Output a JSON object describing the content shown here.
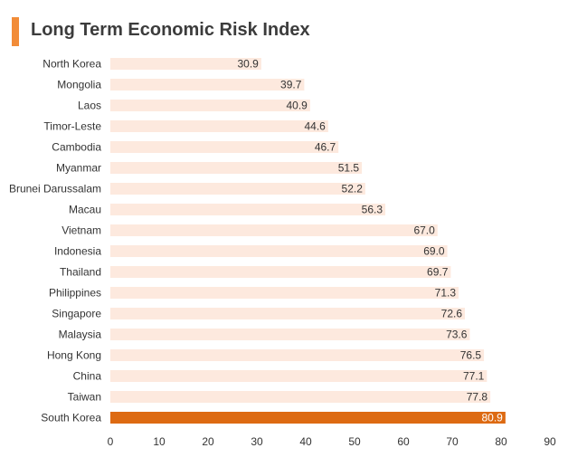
{
  "title": "Long Term Economic Risk Index",
  "colors": {
    "accent": "#f28c38",
    "bar": "#fde9de",
    "highlight": "#dd6a12",
    "text": "#333333"
  },
  "chart_data": {
    "type": "bar",
    "orientation": "horizontal",
    "title": "Long Term Economic Risk Index",
    "xlabel": "",
    "ylabel": "",
    "xlim": [
      0,
      90
    ],
    "x_ticks": [
      0,
      10,
      20,
      30,
      40,
      50,
      60,
      70,
      80,
      90
    ],
    "grid": false,
    "legend": "none",
    "highlighted_category": "South Korea",
    "categories": [
      "North Korea",
      "Mongolia",
      "Laos",
      "Timor-Leste",
      "Cambodia",
      "Myanmar",
      "Brunei Darussalam",
      "Macau",
      "Vietnam",
      "Indonesia",
      "Thailand",
      "Philippines",
      "Singapore",
      "Malaysia",
      "Hong Kong",
      "China",
      "Taiwan",
      "South Korea"
    ],
    "values": [
      30.9,
      39.7,
      40.9,
      44.6,
      46.7,
      51.5,
      52.2,
      56.3,
      67.0,
      69.0,
      69.7,
      71.3,
      72.6,
      73.6,
      76.5,
      77.1,
      77.8,
      80.9
    ],
    "value_labels": [
      "30.9",
      "39.7",
      "40.9",
      "44.6",
      "46.7",
      "51.5",
      "52.2",
      "56.3",
      "67.0",
      "69.0",
      "69.7",
      "71.3",
      "72.6",
      "73.6",
      "76.5",
      "77.1",
      "77.8",
      "80.9"
    ]
  }
}
